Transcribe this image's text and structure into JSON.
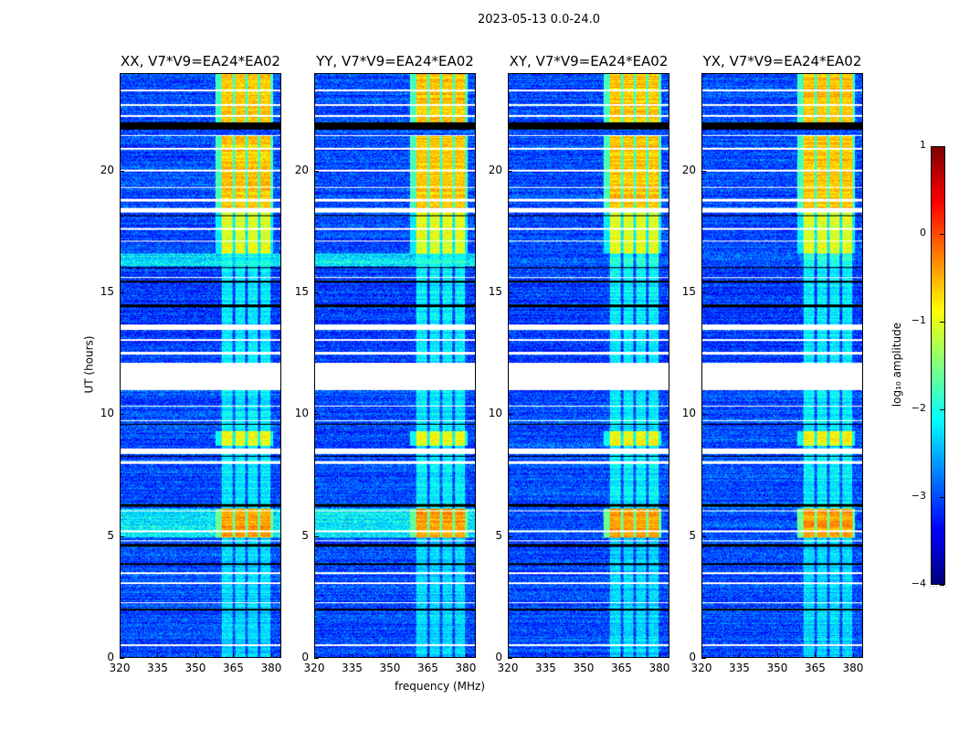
{
  "chart_data": {
    "type": "heatmap",
    "title": "2023-05-13 0.0-24.0",
    "xlabel": "frequency (MHz)",
    "ylabel": "UT (hours)",
    "xlim": [
      320,
      384
    ],
    "ylim": [
      0,
      24
    ],
    "xticks": [
      320,
      335,
      350,
      365,
      380
    ],
    "yticks": [
      0,
      5,
      10,
      15,
      20
    ],
    "colorbar": {
      "label": "log₁₀ amplitude",
      "range": [
        -4,
        1
      ],
      "ticks": [
        1,
        0,
        -1,
        -2,
        -3,
        -4
      ],
      "colormap": "jet"
    },
    "panels": [
      {
        "title": "XX, V7*V9=EA24*EA02",
        "parallel": true
      },
      {
        "title": "YY, V7*V9=EA24*EA02",
        "parallel": true
      },
      {
        "title": "XY, V7*V9=EA24*EA02",
        "parallel": false
      },
      {
        "title": "YX, V7*V9=EA24*EA02",
        "parallel": false
      }
    ],
    "background_level": -3.0,
    "rfi_subbands_mhz": [
      [
        360.5,
        365
      ],
      [
        366,
        370
      ],
      [
        371,
        375
      ],
      [
        376,
        380
      ]
    ],
    "time_segments": [
      {
        "t": [
          22.0,
          24.0
        ],
        "band_level": -0.6,
        "bg_level": -3.0
      },
      {
        "t": [
          18.5,
          21.5
        ],
        "band_level": -0.6,
        "bg_level": -3.0
      },
      {
        "t": [
          16.6,
          18.3
        ],
        "band_level": -1.0,
        "bg_level": -3.0
      },
      {
        "t": [
          16.1,
          16.6
        ],
        "band_level": -2.0,
        "bg_level": -2.2,
        "bg_level_cross": -3.0
      },
      {
        "t": [
          12.1,
          16.1
        ],
        "band_level": -2.2,
        "bg_level": -3.1
      },
      {
        "t": [
          9.3,
          11.0
        ],
        "band_level": -2.2,
        "bg_level": -3.0
      },
      {
        "t": [
          9.3,
          9.7
        ],
        "band_level": -2.0,
        "bg_level": -2.3,
        "bg_level_cross": -3.0
      },
      {
        "t": [
          8.7,
          9.3
        ],
        "band_level": -0.9,
        "bg_level": -3.0
      },
      {
        "t": [
          6.1,
          8.7
        ],
        "band_level": -2.2,
        "bg_level": -3.0
      },
      {
        "t": [
          4.9,
          6.1
        ],
        "band_level": -0.4,
        "bg_level": -2.2,
        "bg_level_cross": -3.0
      },
      {
        "t": [
          0.0,
          4.9
        ],
        "band_level": -2.3,
        "bg_level": -3.0
      }
    ],
    "flagged_white_hours": [
      [
        11.0,
        12.1
      ],
      [
        23.3,
        23.35
      ],
      [
        22.7,
        22.75
      ],
      [
        22.25,
        22.3
      ],
      [
        21.45,
        21.5
      ],
      [
        20.9,
        20.95
      ],
      [
        20.0,
        20.05
      ],
      [
        19.3,
        19.35
      ],
      [
        18.75,
        18.85
      ],
      [
        18.3,
        18.5
      ],
      [
        17.6,
        17.65
      ],
      [
        17.1,
        17.15
      ],
      [
        15.6,
        15.65
      ],
      [
        13.45,
        13.7
      ],
      [
        13.0,
        13.07
      ],
      [
        12.45,
        12.55
      ],
      [
        10.3,
        10.35
      ],
      [
        9.7,
        9.75
      ],
      [
        8.35,
        8.6
      ],
      [
        7.95,
        8.05
      ],
      [
        6.0,
        6.05
      ],
      [
        5.15,
        5.2
      ],
      [
        4.75,
        4.8
      ],
      [
        3.4,
        3.47
      ],
      [
        3.0,
        3.07
      ],
      [
        2.2,
        2.25
      ],
      [
        0.45,
        0.52
      ]
    ],
    "flagged_black_hours": [
      [
        21.7,
        22.0
      ],
      [
        18.15,
        18.2
      ],
      [
        16.0,
        16.05
      ],
      [
        15.4,
        15.5
      ],
      [
        14.4,
        14.5
      ],
      [
        9.55,
        9.6
      ],
      [
        8.25,
        8.3
      ],
      [
        6.2,
        6.3
      ],
      [
        4.55,
        4.65
      ],
      [
        3.8,
        3.88
      ],
      [
        1.9,
        1.98
      ]
    ]
  }
}
